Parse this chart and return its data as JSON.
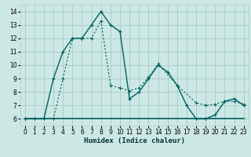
{
  "xlabel": "Humidex (Indice chaleur)",
  "bg_color": "#cce8e5",
  "grid_color": "#aacfcc",
  "line_color": "#006060",
  "xlim": [
    -0.5,
    23.5
  ],
  "ylim": [
    5.5,
    14.5
  ],
  "xticks": [
    0,
    1,
    2,
    3,
    4,
    5,
    6,
    7,
    8,
    9,
    10,
    11,
    12,
    13,
    14,
    15,
    16,
    17,
    18,
    19,
    20,
    21,
    22,
    23
  ],
  "yticks": [
    6,
    7,
    8,
    9,
    10,
    11,
    12,
    13,
    14
  ],
  "series1_x": [
    0,
    1,
    2,
    3,
    4,
    5,
    6,
    7,
    8,
    9,
    10,
    11,
    12,
    13,
    14,
    15,
    16,
    17,
    18,
    19,
    20,
    21,
    22,
    23
  ],
  "series1_y": [
    6,
    6,
    6,
    9,
    11,
    12,
    12,
    13,
    14,
    13,
    12.5,
    7.5,
    8,
    9,
    10,
    9.5,
    8.5,
    7,
    6,
    6,
    6.3,
    7.3,
    7.5,
    7
  ],
  "series2_x": [
    0,
    1,
    2,
    3,
    4,
    5,
    6,
    7,
    8,
    9,
    10,
    11,
    12,
    13,
    14,
    15,
    16,
    17,
    18,
    19,
    20,
    21,
    22,
    23
  ],
  "series2_y": [
    6,
    6,
    6,
    6,
    6,
    6,
    6,
    6,
    6,
    6,
    6,
    6,
    6,
    6,
    6,
    6,
    6,
    6,
    6,
    6,
    6,
    6,
    6,
    6
  ],
  "series3_x": [
    0,
    3,
    4,
    5,
    6,
    7,
    8,
    9,
    10,
    11,
    12,
    13,
    14,
    16,
    18,
    19,
    20,
    21,
    22,
    23
  ],
  "series3_y": [
    6,
    6,
    9,
    12,
    12,
    12,
    13.3,
    8.5,
    8.3,
    8.1,
    8.3,
    9.1,
    10.1,
    8.5,
    7.2,
    7.0,
    7.1,
    7.3,
    7.3,
    7.1
  ]
}
